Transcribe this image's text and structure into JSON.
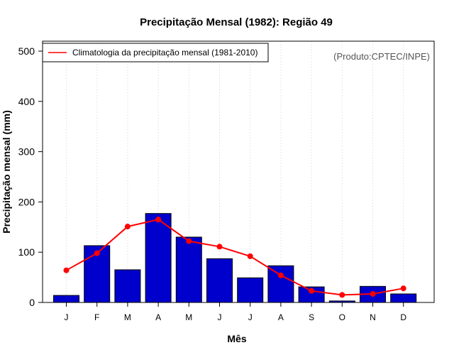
{
  "chart_data": {
    "type": "bar",
    "title": "Precipitação Mensal (1982): Região 49",
    "xlabel": "Mês",
    "ylabel": "Precipitação mensal (mm)",
    "ylim": [
      0,
      500
    ],
    "yticks": [
      0,
      100,
      200,
      300,
      400,
      500
    ],
    "grid": "vertical dotted",
    "categories": [
      "J",
      "F",
      "M",
      "A",
      "M",
      "J",
      "J",
      "A",
      "S",
      "O",
      "N",
      "D"
    ],
    "series": [
      {
        "name": "Precipitação mensal (1982)",
        "kind": "bar",
        "color": "#0000cc",
        "values": [
          14,
          113,
          65,
          177,
          130,
          87,
          49,
          73,
          31,
          3,
          32,
          17
        ]
      },
      {
        "name": "Climatologia da precipitação mensal (1981-2010)",
        "kind": "line",
        "color": "#ff0000",
        "values": [
          64,
          98,
          151,
          165,
          122,
          111,
          92,
          54,
          23,
          15,
          17,
          28
        ]
      }
    ],
    "legend": {
      "label": "Climatologia da precipitação mensal (1981-2010)",
      "position": "top-left"
    },
    "credit": "(Produto:CPTEC/INPE)"
  }
}
